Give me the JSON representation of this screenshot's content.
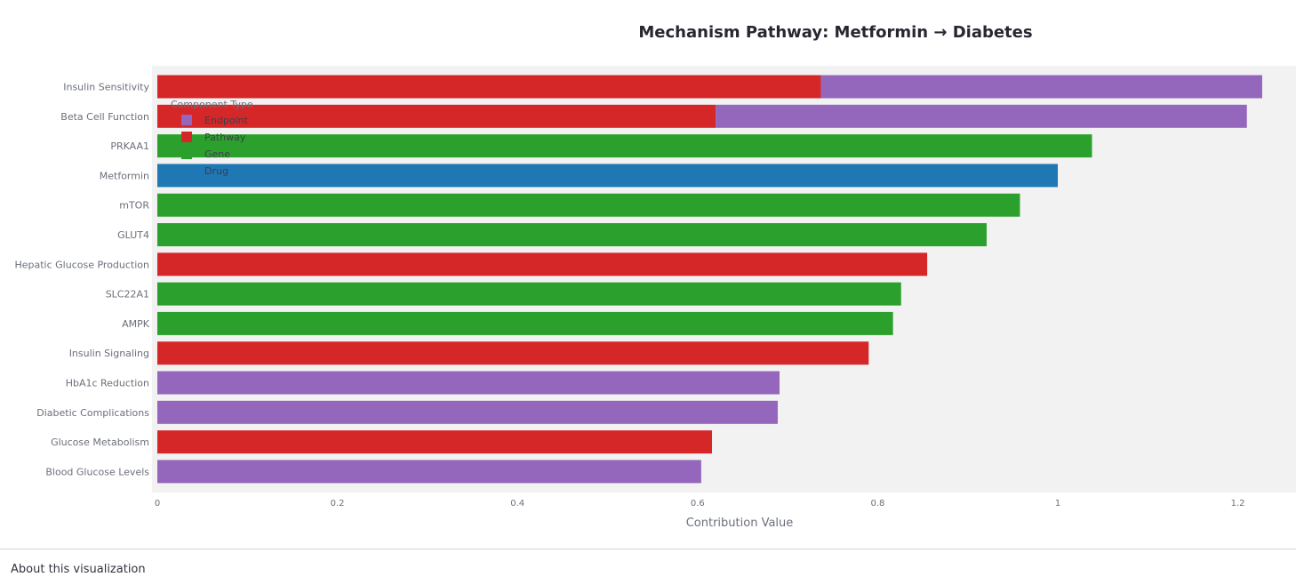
{
  "chart_data": {
    "type": "bar",
    "orientation": "horizontal",
    "barmode": "stack",
    "title": "Mechanism Pathway: Metformin → Diabetes",
    "xlabel": "Contribution Value",
    "ylabel": "",
    "xlim": [
      0,
      1.25
    ],
    "xticks": [
      0,
      0.2,
      0.4,
      0.6,
      0.8,
      1,
      1.2
    ],
    "xtick_labels": [
      "0",
      "0.2",
      "0.4",
      "0.6",
      "0.8",
      "1",
      "1.2"
    ],
    "grid": false,
    "legend": {
      "title": "Component Type",
      "position": "top-left (inside plot)",
      "items": [
        "Endpoint",
        "Pathway",
        "Gene",
        "Drug"
      ]
    },
    "colors": {
      "Endpoint": "#9467bd",
      "Pathway": "#d62728",
      "Gene": "#2ca02c",
      "Drug": "#1f77b4"
    },
    "categories": [
      "Insulin Sensitivity",
      "Beta Cell Function",
      "PRKAA1",
      "Metformin",
      "mTOR",
      "GLUT4",
      "Hepatic Glucose Production",
      "SLC22A1",
      "AMPK",
      "Insulin Signaling",
      "HbA1c Reduction",
      "Diabetic Complications",
      "Glucose Metabolism",
      "Blood Glucose Levels"
    ],
    "series": [
      {
        "name": "Pathway",
        "values": [
          0.737,
          0.62,
          0,
          0,
          0,
          0,
          0.855,
          0,
          0,
          0.79,
          0,
          0,
          0.616,
          0
        ]
      },
      {
        "name": "Gene",
        "values": [
          0,
          0,
          1.038,
          0,
          0.958,
          0.921,
          0,
          0.826,
          0.817,
          0,
          0,
          0,
          0,
          0
        ]
      },
      {
        "name": "Drug",
        "values": [
          0,
          0,
          0,
          1.0,
          0,
          0,
          0,
          0,
          0,
          0,
          0,
          0,
          0,
          0
        ]
      },
      {
        "name": "Endpoint",
        "values": [
          0.49,
          0.59,
          0,
          0,
          0,
          0,
          0,
          0,
          0,
          0,
          0.691,
          0.689,
          0,
          0.604
        ]
      }
    ]
  },
  "footer": {
    "about_label": "About this visualization"
  }
}
